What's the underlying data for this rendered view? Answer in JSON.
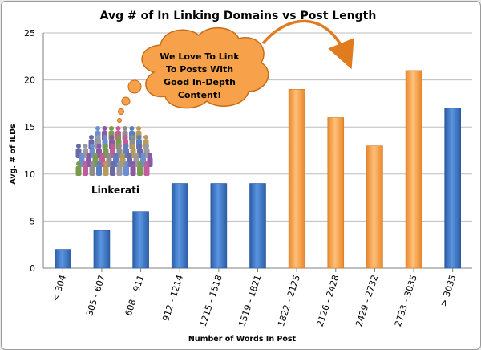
{
  "chart_data": {
    "type": "bar",
    "title": "Avg # of In Linking Domains vs Post Length",
    "xlabel": "Number of Words In Post",
    "ylabel": "Avg. # of ILDs",
    "ylim": [
      0,
      25
    ],
    "yticks": [
      "0",
      "5",
      "10",
      "15",
      "20",
      "25"
    ],
    "grid": true,
    "categories": [
      "< 304",
      "305 - 607",
      "608 - 911",
      "912 - 1214",
      "1215 - 1518",
      "1519 - 1821",
      "1822 - 2125",
      "2126 - 2428",
      "2429 - 2732",
      "2733 - 3035",
      "> 3035"
    ],
    "values": [
      2,
      4,
      6,
      9,
      9,
      9,
      19,
      16,
      13,
      21,
      17
    ],
    "colors": [
      "#3f77c4",
      "#3f77c4",
      "#3f77c4",
      "#3f77c4",
      "#3f77c4",
      "#3f77c4",
      "#f7a24a",
      "#f7a24a",
      "#f7a24a",
      "#f7a24a",
      "#3f77c4"
    ],
    "annotations": {
      "bubble_lines": [
        "We Love To Link",
        "To Posts With",
        "Good In-Depth",
        "Content!"
      ],
      "crowd_label": "Linkerati"
    }
  }
}
